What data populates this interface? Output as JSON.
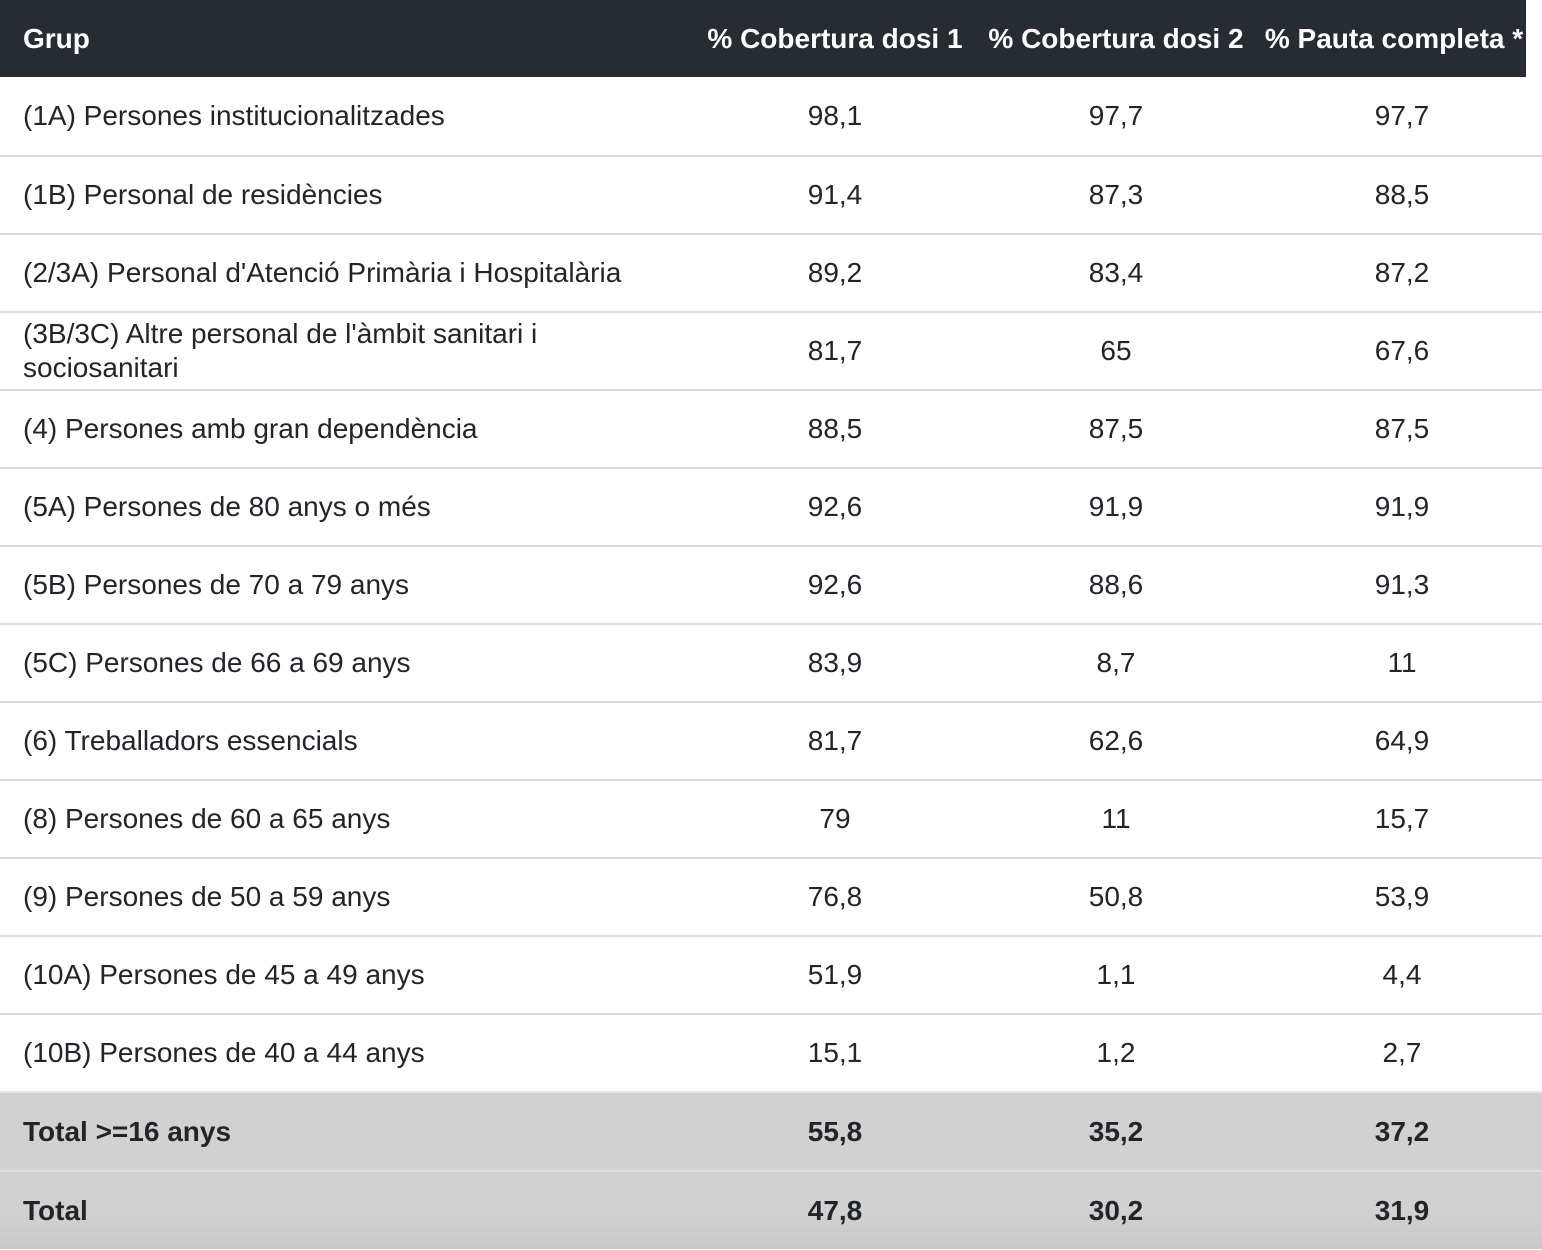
{
  "table": {
    "columns": {
      "grup": "Grup",
      "dosi1": "% Cobertura dosi 1",
      "dosi2": "% Cobertura dosi 2",
      "pauta": "% Pauta completa *"
    },
    "rows": [
      {
        "label": "(1A) Persones institucionalitzades",
        "dosi1": "98,1",
        "dosi2": "97,7",
        "pauta": "97,7"
      },
      {
        "label": "(1B) Personal de residències",
        "dosi1": "91,4",
        "dosi2": "87,3",
        "pauta": "88,5"
      },
      {
        "label": "(2/3A) Personal d'Atenció Primària i Hospitalària",
        "dosi1": "89,2",
        "dosi2": "83,4",
        "pauta": "87,2"
      },
      {
        "label": "(3B/3C) Altre personal de l'àmbit sanitari i sociosanitari",
        "dosi1": "81,7",
        "dosi2": "65",
        "pauta": "67,6"
      },
      {
        "label": "(4) Persones amb gran dependència",
        "dosi1": "88,5",
        "dosi2": "87,5",
        "pauta": "87,5"
      },
      {
        "label": "(5A) Persones de 80 anys o més",
        "dosi1": "92,6",
        "dosi2": "91,9",
        "pauta": "91,9"
      },
      {
        "label": "(5B) Persones de 70 a 79 anys",
        "dosi1": "92,6",
        "dosi2": "88,6",
        "pauta": "91,3"
      },
      {
        "label": "(5C) Persones de 66 a 69 anys",
        "dosi1": "83,9",
        "dosi2": "8,7",
        "pauta": "11"
      },
      {
        "label": "(6) Treballadors essencials",
        "dosi1": "81,7",
        "dosi2": "62,6",
        "pauta": "64,9"
      },
      {
        "label": "(8) Persones de 60 a 65 anys",
        "dosi1": "79",
        "dosi2": "11",
        "pauta": "15,7"
      },
      {
        "label": "(9) Persones de 50 a 59 anys",
        "dosi1": "76,8",
        "dosi2": "50,8",
        "pauta": "53,9"
      },
      {
        "label": "(10A) Persones de 45 a 49 anys",
        "dosi1": "51,9",
        "dosi2": "1,1",
        "pauta": "4,4"
      },
      {
        "label": "(10B) Persones de 40 a 44 anys",
        "dosi1": "15,1",
        "dosi2": "1,2",
        "pauta": "2,7"
      }
    ],
    "totals": [
      {
        "label": "Total >=16 anys",
        "dosi1": "55,8",
        "dosi2": "35,2",
        "pauta": "37,2"
      },
      {
        "label": "Total",
        "dosi1": "47,8",
        "dosi2": "30,2",
        "pauta": "31,9"
      }
    ]
  },
  "colors": {
    "header_bg": "#272c33",
    "header_text": "#ffffff",
    "row_bg": "#ffffff",
    "row_divider": "#d9dde1",
    "total_row_bg": "#d1d1d1",
    "body_text": "#212529"
  },
  "chart_data": {
    "type": "table",
    "title": "",
    "categories": [
      "(1A) Persones institucionalitzades",
      "(1B) Personal de residències",
      "(2/3A) Personal d'Atenció Primària i Hospitalària",
      "(3B/3C) Altre personal de l'àmbit sanitari i sociosanitari",
      "(4) Persones amb gran dependència",
      "(5A) Persones de 80 anys o més",
      "(5B) Persones de 70 a 79 anys",
      "(5C) Persones de 66 a 69 anys",
      "(6) Treballadors essencials",
      "(8) Persones de 60 a 65 anys",
      "(9) Persones de 50 a 59 anys",
      "(10A) Persones de 45 a 49 anys",
      "(10B) Persones de 40 a 44 anys"
    ],
    "series": [
      {
        "name": "% Cobertura dosi 1",
        "values": [
          98.1,
          91.4,
          89.2,
          81.7,
          88.5,
          92.6,
          92.6,
          83.9,
          81.7,
          79,
          76.8,
          51.9,
          15.1
        ]
      },
      {
        "name": "% Cobertura dosi 2",
        "values": [
          97.7,
          87.3,
          83.4,
          65,
          87.5,
          91.9,
          88.6,
          8.7,
          62.6,
          11,
          50.8,
          1.1,
          1.2
        ]
      },
      {
        "name": "% Pauta completa *",
        "values": [
          97.7,
          88.5,
          87.2,
          67.6,
          87.5,
          91.9,
          91.3,
          11,
          64.9,
          15.7,
          53.9,
          4.4,
          2.7
        ]
      }
    ],
    "totals": [
      {
        "name": "Total >=16 anys",
        "values": [
          55.8,
          35.2,
          37.2
        ]
      },
      {
        "name": "Total",
        "values": [
          47.8,
          30.2,
          31.9
        ]
      }
    ]
  }
}
